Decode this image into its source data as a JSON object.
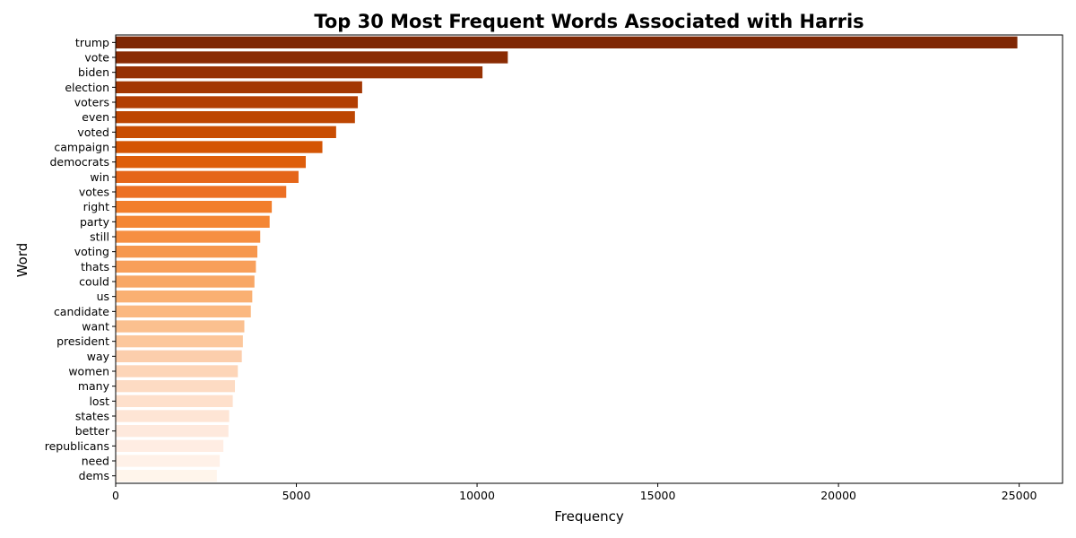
{
  "chart_data": {
    "type": "bar",
    "orientation": "horizontal",
    "title": "Top 30 Most Frequent Words Associated with Harris",
    "xlabel": "Frequency",
    "ylabel": "Word",
    "xlim": [
      0,
      26200
    ],
    "xticks": [
      0,
      5000,
      10000,
      15000,
      20000,
      25000
    ],
    "grid": false,
    "categories": [
      "trump",
      "vote",
      "biden",
      "election",
      "voters",
      "even",
      "voted",
      "campaign",
      "democrats",
      "win",
      "votes",
      "right",
      "party",
      "still",
      "voting",
      "thats",
      "could",
      "us",
      "candidate",
      "want",
      "president",
      "way",
      "women",
      "many",
      "lost",
      "states",
      "better",
      "republicans",
      "need",
      "dems"
    ],
    "values": [
      24950,
      10850,
      10150,
      6820,
      6700,
      6620,
      6100,
      5720,
      5260,
      5060,
      4720,
      4320,
      4260,
      4000,
      3920,
      3880,
      3840,
      3780,
      3740,
      3560,
      3520,
      3490,
      3380,
      3300,
      3240,
      3140,
      3120,
      2980,
      2880,
      2800
    ],
    "colors": [
      "#7f2704",
      "#8a2c04",
      "#963103",
      "#a33703",
      "#b23e03",
      "#bd4602",
      "#c94d02",
      "#d45504",
      "#de5e0b",
      "#e5661a",
      "#ec7024",
      "#f27e2b",
      "#f48634",
      "#f68f42",
      "#f6974e",
      "#f89f5a",
      "#f8a766",
      "#fab072",
      "#fbb880",
      "#fbc08f",
      "#fcc79c",
      "#fcceac",
      "#fdd5b8",
      "#fddbc3",
      "#fee0cc",
      "#fee5d5",
      "#fee9dd",
      "#ffede3",
      "#fff1e8",
      "#fff5eb"
    ]
  }
}
